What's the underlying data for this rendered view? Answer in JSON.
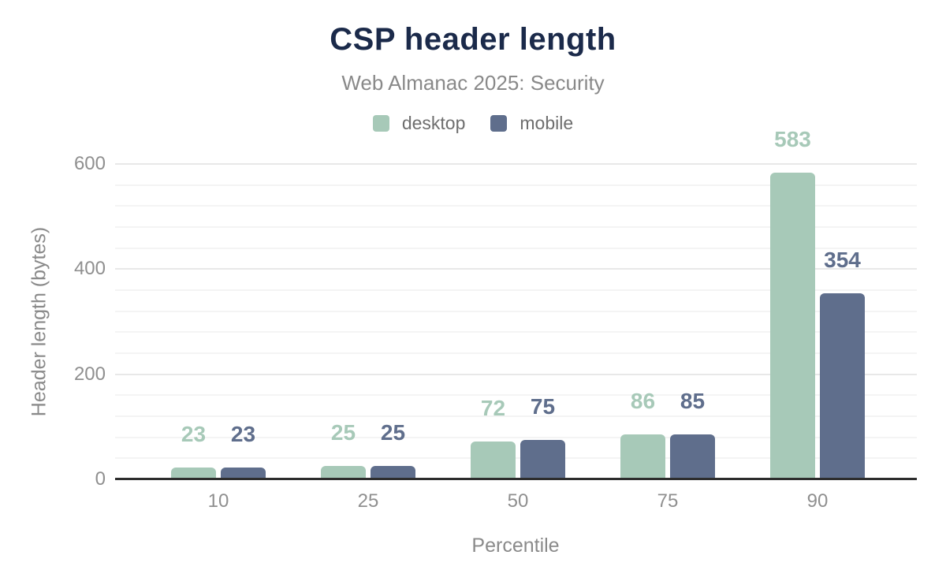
{
  "chart_data": {
    "type": "bar",
    "title": "CSP header length",
    "subtitle": "Web Almanac 2025: Security",
    "xlabel": "Percentile",
    "ylabel": "Header length (bytes)",
    "categories": [
      "10",
      "25",
      "50",
      "75",
      "90"
    ],
    "series": [
      {
        "name": "desktop",
        "color": "#a7c9b8",
        "values": [
          23,
          25,
          72,
          86,
          583
        ]
      },
      {
        "name": "mobile",
        "color": "#5f6e8c",
        "values": [
          23,
          25,
          75,
          85,
          354
        ]
      }
    ],
    "ylim": [
      0,
      600
    ],
    "yticks": [
      0,
      200,
      400,
      600
    ],
    "minor_grid_step": 40,
    "grid": true,
    "legend_position": "top",
    "value_labels_shown": true
  },
  "colors": {
    "background": "#ffffff",
    "title": "#1b2a4a",
    "subtitle": "#898989",
    "legend_text": "#6e6e6e",
    "tick_label": "#8f8f8f",
    "axis_title": "#8a8a8a",
    "axis_line": "#2d2d2d",
    "grid_major": "#e8e8e8",
    "grid_minor": "#f4f4f4"
  }
}
